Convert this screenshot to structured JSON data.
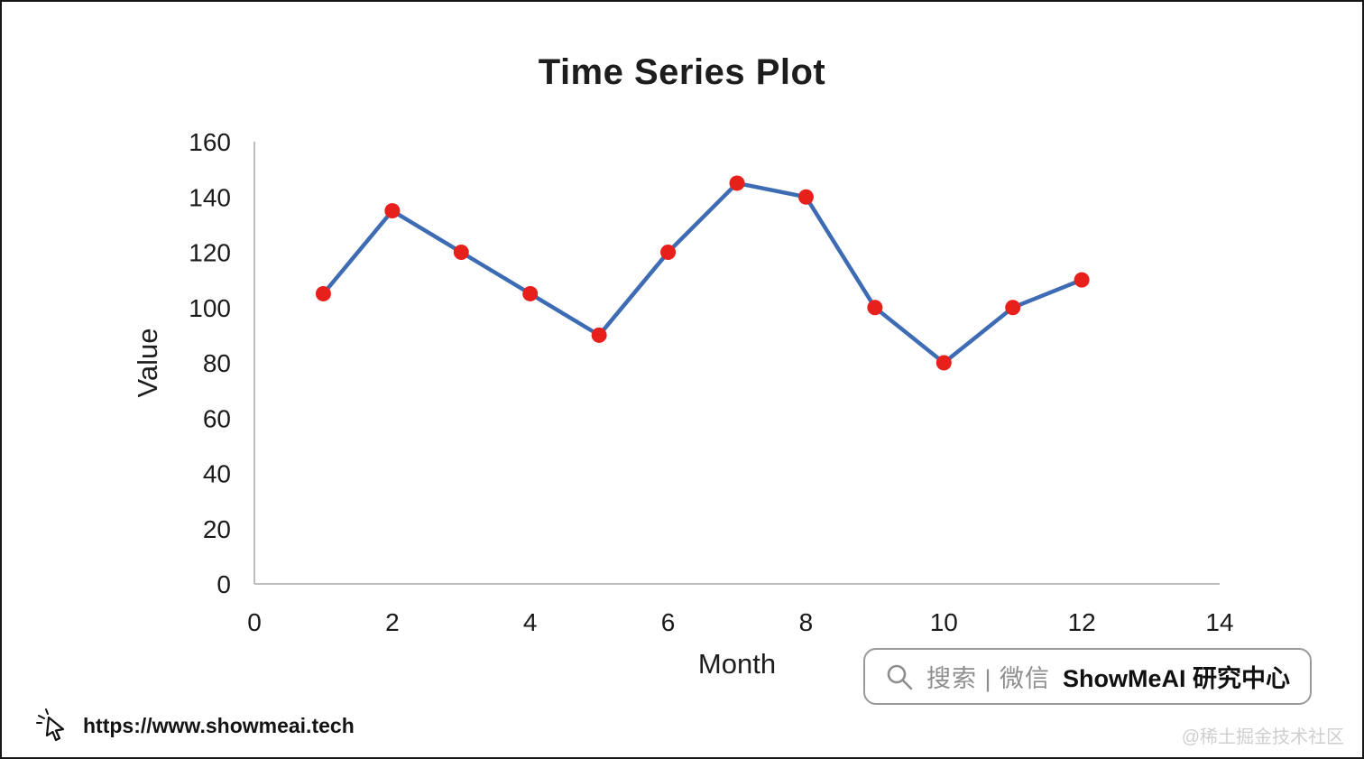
{
  "page": {
    "footer_url": "https://www.showmeai.tech",
    "badge": {
      "search_text": "搜索 | 微信",
      "brand_text": "ShowMeAI 研究中心"
    },
    "watermark": "@稀土掘金技术社区"
  },
  "chart_data": {
    "type": "line",
    "title": "Time Series Plot",
    "xlabel": "Month",
    "ylabel": "Value",
    "x": [
      1,
      2,
      3,
      4,
      5,
      6,
      7,
      8,
      9,
      10,
      11,
      12
    ],
    "y": [
      105,
      135,
      120,
      105,
      90,
      120,
      145,
      140,
      100,
      80,
      100,
      110
    ],
    "xlim": [
      0,
      14
    ],
    "ylim": [
      0,
      160
    ],
    "xticks": [
      0,
      2,
      4,
      6,
      8,
      10,
      12,
      14
    ],
    "yticks": [
      0,
      20,
      40,
      60,
      80,
      100,
      120,
      140,
      160
    ],
    "grid": false,
    "legend": "none",
    "line_color": "#3d6cb4",
    "marker_color": "#e8201c",
    "axis_color": "#bdbdbd",
    "tick_label_color": "#1a1a1a",
    "title_color": "#1d1d1d"
  }
}
